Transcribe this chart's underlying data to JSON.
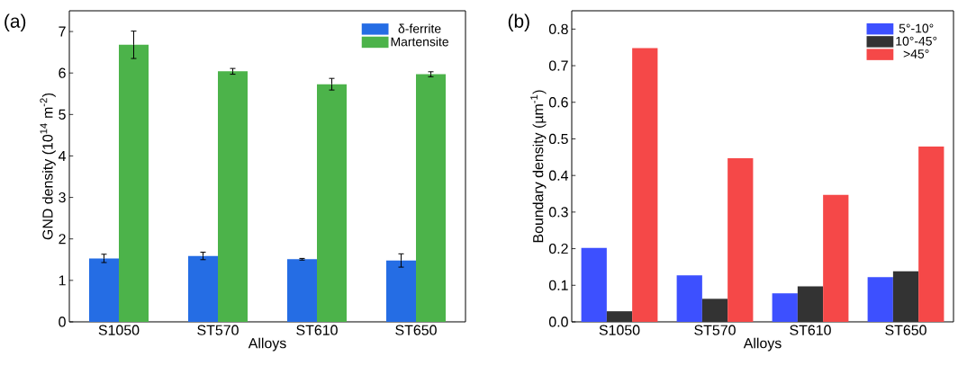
{
  "chart_data": [
    {
      "type": "bar",
      "annotations": [
        "(a)"
      ],
      "xlabel": "Alloys",
      "ylabel": "GND density (10$^{14}$ m$^{-2}$)",
      "categories": [
        "S1050",
        "ST570",
        "ST610",
        "ST650"
      ],
      "series": [
        {
          "name": "δ-ferrite",
          "color": "#256de4",
          "values": [
            1.53,
            1.59,
            1.51,
            1.48
          ],
          "errors": [
            0.1,
            0.09,
            0.02,
            0.16
          ]
        },
        {
          "name": "Martensite",
          "color": "#4cb34a",
          "values": [
            6.68,
            6.04,
            5.73,
            5.97
          ],
          "errors": [
            0.33,
            0.07,
            0.14,
            0.06
          ]
        }
      ],
      "ylim": [
        0,
        7.5
      ],
      "yticks": [
        0,
        1,
        2,
        3,
        4,
        5,
        6,
        7
      ],
      "legend": "top right"
    },
    {
      "type": "bar",
      "annotations": [
        "(b)"
      ],
      "xlabel": "Alloys",
      "ylabel": "Boundary density (µm$^{-1}$)",
      "categories": [
        "S1050",
        "ST570",
        "ST610",
        "ST650"
      ],
      "series": [
        {
          "name": "5°-10°",
          "color": "#3d50ff",
          "values": [
            0.202,
            0.127,
            0.078,
            0.122
          ]
        },
        {
          "name": "10°-45°",
          "color": "#333333",
          "values": [
            0.029,
            0.063,
            0.097,
            0.138
          ]
        },
        {
          "name": ">45°",
          "color": "#f54848",
          "values": [
            0.748,
            0.447,
            0.347,
            0.479
          ]
        }
      ],
      "ylim": [
        0,
        0.85
      ],
      "yticks": [
        {
          "value": 0,
          "label": "0.0"
        },
        0.1,
        0.2,
        0.3,
        0.4,
        0.5,
        0.6,
        0.7,
        0.8
      ],
      "legend": "top right"
    }
  ]
}
